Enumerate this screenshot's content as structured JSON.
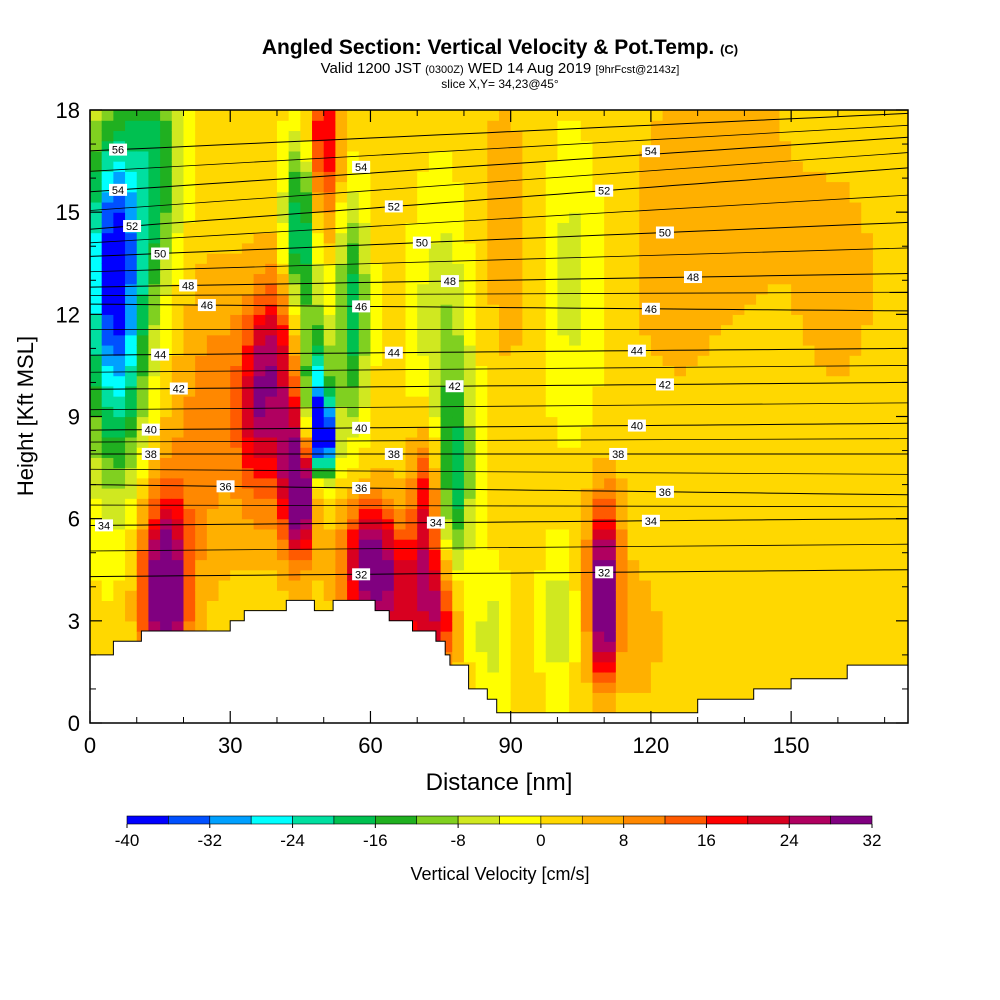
{
  "header": {
    "title": "Angled Section: Vertical Velocity & Pot.Temp.",
    "title_unit": "(C)",
    "valid_prefix": "Valid 1200 JST",
    "valid_utc": "(0300Z)",
    "valid_date": "WED 14 Aug 2019",
    "forecast": "[9hrFcst@2143z]",
    "slice": "slice X,Y= 34,23@45°"
  },
  "chart_data": {
    "type": "heatmap",
    "xlabel": "Distance [nm]",
    "ylabel": "Height [Kft MSL]",
    "xlim": [
      0,
      175
    ],
    "ylim": [
      0,
      18
    ],
    "x_ticks": [
      0,
      30,
      60,
      90,
      120,
      150
    ],
    "y_ticks": [
      0,
      3,
      6,
      9,
      12,
      15,
      18
    ],
    "colorbar": {
      "label": "Vertical Velocity [cm/s]",
      "ticks": [
        -40,
        -32,
        -24,
        -16,
        -8,
        0,
        8,
        16,
        24,
        32
      ],
      "levels": [
        -40,
        -36,
        -32,
        -28,
        -24,
        -20,
        -16,
        -12,
        -8,
        -4,
        0,
        4,
        8,
        12,
        16,
        20,
        24,
        28,
        32
      ],
      "colors": [
        "#0000ff",
        "#0050ff",
        "#00a0ff",
        "#00ffff",
        "#00dfa0",
        "#00c050",
        "#20b020",
        "#80d020",
        "#d0e820",
        "#ffff00",
        "#ffd800",
        "#ffb000",
        "#ff8800",
        "#ff5a00",
        "#ff0000",
        "#d80020",
        "#b00060",
        "#800080"
      ]
    },
    "terrain_profile": [
      [
        0,
        2.0
      ],
      [
        5,
        2.0
      ],
      [
        5,
        2.4
      ],
      [
        11,
        2.4
      ],
      [
        11,
        2.7
      ],
      [
        30,
        2.7
      ],
      [
        30,
        3.0
      ],
      [
        33,
        3.0
      ],
      [
        33,
        3.3
      ],
      [
        42,
        3.3
      ],
      [
        42,
        3.6
      ],
      [
        48,
        3.6
      ],
      [
        48,
        3.3
      ],
      [
        52,
        3.3
      ],
      [
        52,
        3.6
      ],
      [
        61,
        3.6
      ],
      [
        61,
        3.3
      ],
      [
        64,
        3.3
      ],
      [
        64,
        3.0
      ],
      [
        69,
        3.0
      ],
      [
        69,
        2.7
      ],
      [
        74,
        2.7
      ],
      [
        74,
        2.4
      ],
      [
        76,
        2.4
      ],
      [
        76,
        2.0
      ],
      [
        77,
        2.0
      ],
      [
        77,
        1.7
      ],
      [
        81,
        1.7
      ],
      [
        81,
        1.0
      ],
      [
        85,
        1.0
      ],
      [
        85,
        0.7
      ],
      [
        87,
        0.7
      ],
      [
        87,
        0.3
      ],
      [
        130,
        0.3
      ],
      [
        130,
        0.7
      ],
      [
        142,
        0.7
      ],
      [
        142,
        1.0
      ],
      [
        150,
        1.0
      ],
      [
        150,
        1.3
      ],
      [
        162,
        1.3
      ],
      [
        162,
        1.7
      ],
      [
        175,
        1.7
      ]
    ],
    "velocity_cells": [
      {
        "x": 5,
        "y": 14.0,
        "value": -26,
        "sx": 4,
        "sy": 2.8
      },
      {
        "x": 6,
        "y": 11.0,
        "value": -18,
        "sx": 5,
        "sy": 3.5
      },
      {
        "x": 14,
        "y": 16.5,
        "value": -16,
        "sx": 4,
        "sy": 2.5
      },
      {
        "x": 16,
        "y": 3.6,
        "value": 30,
        "sx": 3,
        "sy": 1.4
      },
      {
        "x": 16,
        "y": 5.0,
        "value": 18,
        "sx": 4,
        "sy": 2.0
      },
      {
        "x": 26,
        "y": 9.0,
        "value": 10,
        "sx": 6,
        "sy": 3.0
      },
      {
        "x": 36,
        "y": 9.3,
        "value": 22,
        "sx": 3,
        "sy": 2.0
      },
      {
        "x": 40,
        "y": 11.0,
        "value": 16,
        "sx": 3,
        "sy": 1.8
      },
      {
        "x": 45,
        "y": 6.8,
        "value": 32,
        "sx": 2.2,
        "sy": 1.2
      },
      {
        "x": 44,
        "y": 8.0,
        "value": 20,
        "sx": 3,
        "sy": 2.0
      },
      {
        "x": 48,
        "y": 9.5,
        "value": -30,
        "sx": 2.2,
        "sy": 1.6
      },
      {
        "x": 50,
        "y": 8.4,
        "value": -40,
        "sx": 1.6,
        "sy": 0.8
      },
      {
        "x": 45,
        "y": 14.5,
        "value": -22,
        "sx": 2.5,
        "sy": 2.0
      },
      {
        "x": 50,
        "y": 17.0,
        "value": 22,
        "sx": 2.5,
        "sy": 1.8
      },
      {
        "x": 56,
        "y": 12.0,
        "value": -18,
        "sx": 2.5,
        "sy": 2.5
      },
      {
        "x": 60,
        "y": 4.8,
        "value": 30,
        "sx": 4,
        "sy": 1.3
      },
      {
        "x": 67,
        "y": 3.5,
        "value": 18,
        "sx": 5,
        "sy": 1.2
      },
      {
        "x": 72,
        "y": 6.2,
        "value": 24,
        "sx": 2.5,
        "sy": 2.0
      },
      {
        "x": 75,
        "y": 3.0,
        "value": 16,
        "sx": 2.5,
        "sy": 1.2
      },
      {
        "x": 76,
        "y": 10.5,
        "value": -10,
        "sx": 5,
        "sy": 3.5
      },
      {
        "x": 78,
        "y": 7.0,
        "value": -14,
        "sx": 2.5,
        "sy": 1.8
      },
      {
        "x": 86,
        "y": 2.5,
        "value": -6,
        "sx": 3,
        "sy": 1.5
      },
      {
        "x": 88,
        "y": 14.0,
        "value": 6,
        "sx": 6,
        "sy": 3.5
      },
      {
        "x": 100,
        "y": 3.0,
        "value": -8,
        "sx": 2.5,
        "sy": 1.5
      },
      {
        "x": 103,
        "y": 13.0,
        "value": -6,
        "sx": 5,
        "sy": 3.0
      },
      {
        "x": 110,
        "y": 3.2,
        "value": 32,
        "sx": 2.0,
        "sy": 1.4
      },
      {
        "x": 110,
        "y": 5.0,
        "value": 18,
        "sx": 2.5,
        "sy": 1.5
      },
      {
        "x": 118,
        "y": 2.5,
        "value": 6,
        "sx": 3,
        "sy": 1.5
      },
      {
        "x": 125,
        "y": 14.0,
        "value": 5,
        "sx": 10,
        "sy": 4.0
      },
      {
        "x": 140,
        "y": 16.0,
        "value": 5,
        "sx": 8,
        "sy": 2.5
      },
      {
        "x": 160,
        "y": 13.0,
        "value": 5,
        "sx": 8,
        "sy": 3.0
      }
    ],
    "theta_contours": [
      {
        "level": 56,
        "label": "56",
        "y_left": 16.8,
        "y_right": 17.9,
        "label_x": 6
      },
      {
        "level": 54,
        "label": "54",
        "y_left": 15.6,
        "y_right": 17.2,
        "label_x": 6
      },
      {
        "level": 54,
        "label": "54",
        "y_left": 15.9,
        "y_right": 17.2,
        "label_x": 58
      },
      {
        "level": 54,
        "label": "54",
        "y_left": 15.9,
        "y_right": 17.2,
        "label_x": 120
      },
      {
        "level": 52,
        "label": "52",
        "y_left": 14.5,
        "y_right": 16.3,
        "label_x": 9
      },
      {
        "level": 52,
        "label": "52",
        "y_left": 14.5,
        "y_right": 16.3,
        "label_x": 65
      },
      {
        "level": 52,
        "label": "52",
        "y_left": 14.5,
        "y_right": 16.3,
        "label_x": 110
      },
      {
        "level": 50,
        "label": "50",
        "y_left": 13.7,
        "y_right": 14.7,
        "label_x": 15
      },
      {
        "level": 50,
        "label": "50",
        "y_left": 13.7,
        "y_right": 14.7,
        "label_x": 71
      },
      {
        "level": 50,
        "label": "50",
        "y_left": 13.7,
        "y_right": 14.7,
        "label_x": 123
      },
      {
        "level": 48,
        "label": "48",
        "y_left": 12.8,
        "y_right": 13.2,
        "label_x": 21
      },
      {
        "level": 48,
        "label": "48",
        "y_left": 12.8,
        "y_right": 13.2,
        "label_x": 77
      },
      {
        "level": 48,
        "label": "48",
        "y_left": 12.8,
        "y_right": 13.2,
        "label_x": 129
      },
      {
        "level": 46,
        "label": "46",
        "y_left": 12.3,
        "y_right": 12.1,
        "label_x": 25
      },
      {
        "level": 46,
        "label": "46",
        "y_left": 12.3,
        "y_right": 12.1,
        "label_x": 58
      },
      {
        "level": 46,
        "label": "46",
        "y_left": 12.3,
        "y_right": 12.1,
        "label_x": 120
      },
      {
        "level": 44,
        "label": "44",
        "y_left": 10.8,
        "y_right": 11.0,
        "label_x": 15
      },
      {
        "level": 44,
        "label": "44",
        "y_left": 10.8,
        "y_right": 11.0,
        "label_x": 65
      },
      {
        "level": 44,
        "label": "44",
        "y_left": 10.8,
        "y_right": 11.0,
        "label_x": 117
      },
      {
        "level": 42,
        "label": "42",
        "y_left": 9.8,
        "y_right": 10.0,
        "label_x": 19
      },
      {
        "level": 42,
        "label": "42",
        "y_left": 9.8,
        "y_right": 10.0,
        "label_x": 78
      },
      {
        "level": 42,
        "label": "42",
        "y_left": 9.8,
        "y_right": 10.0,
        "label_x": 123
      },
      {
        "level": 40,
        "label": "40",
        "y_left": 8.6,
        "y_right": 8.8,
        "label_x": 13
      },
      {
        "level": 40,
        "label": "40",
        "y_left": 8.6,
        "y_right": 8.8,
        "label_x": 58
      },
      {
        "level": 40,
        "label": "40",
        "y_left": 8.6,
        "y_right": 8.8,
        "label_x": 117
      },
      {
        "level": 38,
        "label": "38",
        "y_left": 7.9,
        "y_right": 7.9,
        "label_x": 13
      },
      {
        "level": 38,
        "label": "38",
        "y_left": 7.9,
        "y_right": 7.9,
        "label_x": 65
      },
      {
        "level": 38,
        "label": "38",
        "y_left": 7.9,
        "y_right": 7.9,
        "label_x": 113
      },
      {
        "level": 36,
        "label": "36",
        "y_left": 7.0,
        "y_right": 6.7,
        "label_x": 29
      },
      {
        "level": 36,
        "label": "36",
        "y_left": 7.0,
        "y_right": 6.7,
        "label_x": 58
      },
      {
        "level": 36,
        "label": "36",
        "y_left": 7.0,
        "y_right": 6.7,
        "label_x": 123
      },
      {
        "level": 34,
        "label": "34",
        "y_left": 5.8,
        "y_right": 6.0,
        "label_x": 3
      },
      {
        "level": 34,
        "label": "34",
        "y_left": 5.8,
        "y_right": 6.0,
        "label_x": 74
      },
      {
        "level": 34,
        "label": "34",
        "y_left": 5.8,
        "y_right": 6.0,
        "label_x": 120
      },
      {
        "level": 32,
        "label": "32",
        "y_left": 4.3,
        "y_right": 4.5,
        "label_x": 58
      },
      {
        "level": 32,
        "label": "32",
        "y_left": 4.3,
        "y_right": 4.5,
        "label_x": 110
      }
    ]
  }
}
